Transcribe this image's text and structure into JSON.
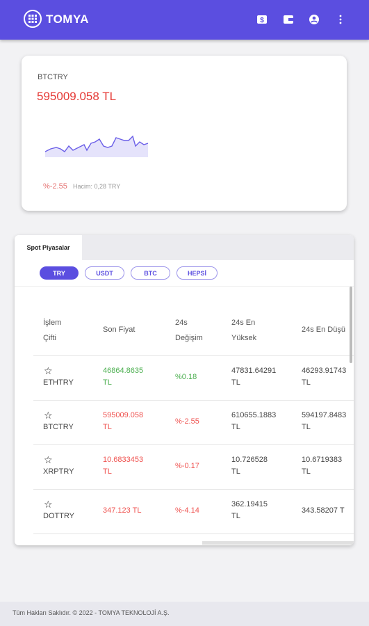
{
  "brand": {
    "name": "TOMYA"
  },
  "header_icons": [
    "dollar-icon",
    "wallet-icon",
    "account-icon",
    "more-icon"
  ],
  "ticker_card": {
    "pair": "BTCTRY",
    "price": "595009.058 TL",
    "change": "%-2.55",
    "volume": "Hacim: 0,28 TRY",
    "sparkline_color": "#6b5fe8"
  },
  "market": {
    "tab_label": "Spot Piyasalar",
    "filters": [
      "TRY",
      "USDT",
      "BTC",
      "HEPSİ"
    ],
    "active_filter": "TRY",
    "headers": {
      "pair_1": "İşlem",
      "pair_2": "Çifti",
      "last_price": "Son Fiyat",
      "change_1": "24s",
      "change_2": "Değişim",
      "high_1": "24s En",
      "high_2": "Yüksek",
      "low": "24s En Düşü"
    },
    "rows": [
      {
        "symbol": "ETHTRY",
        "last_1": "46864.8635",
        "last_2": "TL",
        "change": "%0.18",
        "high_1": "47831.64291",
        "high_2": "TL",
        "low_1": "46293.91743",
        "low_2": "TL",
        "direction": "up"
      },
      {
        "symbol": "BTCTRY",
        "last_1": "595009.058",
        "last_2": "TL",
        "change": "%-2.55",
        "high_1": "610655.1883",
        "high_2": "TL",
        "low_1": "594197.8483",
        "low_2": "TL",
        "direction": "down"
      },
      {
        "symbol": "XRPTRY",
        "last_1": "10.6833453",
        "last_2": "TL",
        "change": "%-0.17",
        "high_1": "10.726528",
        "high_2": "TL",
        "low_1": "10.6719383",
        "low_2": "TL",
        "direction": "down"
      },
      {
        "symbol": "DOTTRY",
        "last_1": "347.123 TL",
        "last_2": "",
        "change": "%-4.14",
        "high_1": "362.19415",
        "high_2": "TL",
        "low_1": "343.58207 T",
        "low_2": "",
        "direction": "down"
      }
    ]
  },
  "colors": {
    "primary": "#5b4ee0",
    "positive": "#4caf50",
    "negative": "#ef5350"
  },
  "footer": {
    "text": "Tüm Hakları Saklıdır. © 2022 - TOMYA TEKNOLOJİ A.Ş."
  }
}
